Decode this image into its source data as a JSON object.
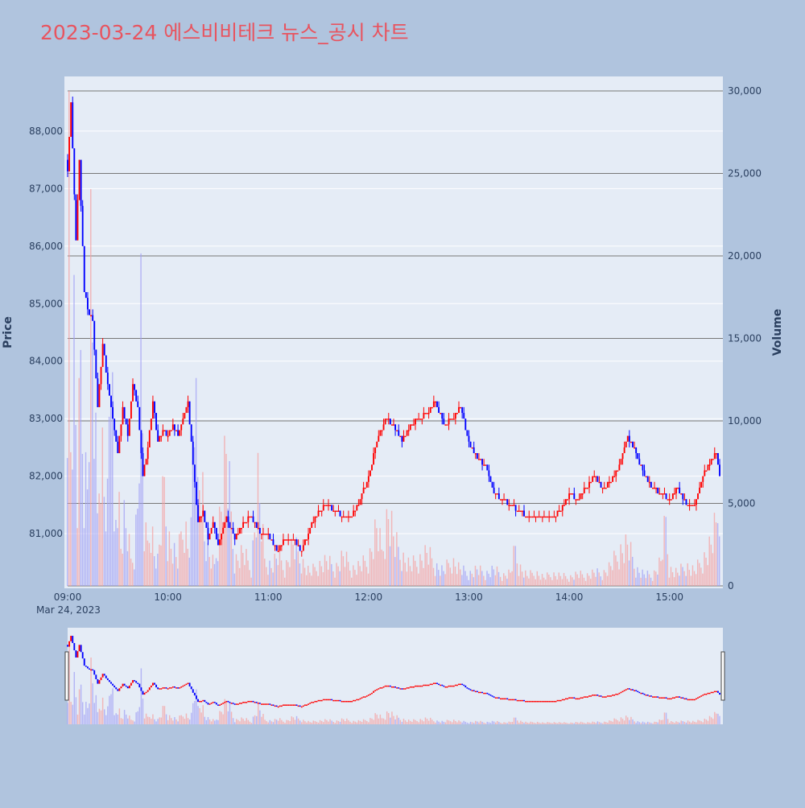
{
  "chart_data": {
    "type": "candlestick",
    "title": "2023-03-24 에스비비테크 뉴스_공시 차트",
    "ylabel_left": "Price",
    "ylabel_right": "Volume",
    "x_range": [
      "09:00",
      "15:30"
    ],
    "x_ticks": [
      "09:00",
      "10:00",
      "11:00",
      "12:00",
      "13:00",
      "14:00",
      "15:00"
    ],
    "x_date_label": "Mar 24, 2023",
    "price_ylim": [
      80050,
      88950
    ],
    "price_ticks": [
      "81,000",
      "82,000",
      "83,000",
      "84,000",
      "85,000",
      "86,000",
      "87,000",
      "88,000"
    ],
    "volume_ylim": [
      0,
      30000
    ],
    "volume_ticks": [
      "0",
      "5,000",
      "10,000",
      "15,000",
      "20,000",
      "25,000",
      "30,000"
    ],
    "colors": {
      "up": "#ff0000",
      "down": "#0000ff",
      "title": "#e8545f"
    },
    "price_series": [
      [
        0,
        87300
      ],
      [
        2,
        88500
      ],
      [
        5,
        86100
      ],
      [
        7,
        87500
      ],
      [
        10,
        85200
      ],
      [
        12,
        84900
      ],
      [
        15,
        84700
      ],
      [
        18,
        83200
      ],
      [
        21,
        84300
      ],
      [
        24,
        83600
      ],
      [
        27,
        83000
      ],
      [
        30,
        82400
      ],
      [
        33,
        83200
      ],
      [
        36,
        82700
      ],
      [
        39,
        83600
      ],
      [
        42,
        83200
      ],
      [
        45,
        82000
      ],
      [
        48,
        82500
      ],
      [
        51,
        83300
      ],
      [
        54,
        82600
      ],
      [
        57,
        82800
      ],
      [
        60,
        82700
      ],
      [
        63,
        82900
      ],
      [
        66,
        82700
      ],
      [
        69,
        83000
      ],
      [
        72,
        83300
      ],
      [
        75,
        82200
      ],
      [
        78,
        81200
      ],
      [
        81,
        81400
      ],
      [
        84,
        80900
      ],
      [
        87,
        81200
      ],
      [
        90,
        80800
      ],
      [
        95,
        81300
      ],
      [
        100,
        80900
      ],
      [
        105,
        81200
      ],
      [
        110,
        81300
      ],
      [
        115,
        81000
      ],
      [
        120,
        81000
      ],
      [
        125,
        80700
      ],
      [
        130,
        80900
      ],
      [
        135,
        80900
      ],
      [
        140,
        80700
      ],
      [
        145,
        81100
      ],
      [
        150,
        81400
      ],
      [
        155,
        81500
      ],
      [
        160,
        81400
      ],
      [
        165,
        81300
      ],
      [
        170,
        81300
      ],
      [
        175,
        81600
      ],
      [
        180,
        82000
      ],
      [
        185,
        82600
      ],
      [
        190,
        83000
      ],
      [
        195,
        82900
      ],
      [
        200,
        82600
      ],
      [
        205,
        82900
      ],
      [
        210,
        83000
      ],
      [
        215,
        83100
      ],
      [
        220,
        83300
      ],
      [
        225,
        82900
      ],
      [
        230,
        83000
      ],
      [
        235,
        83200
      ],
      [
        240,
        82600
      ],
      [
        245,
        82300
      ],
      [
        250,
        82200
      ],
      [
        255,
        81700
      ],
      [
        260,
        81600
      ],
      [
        265,
        81500
      ],
      [
        270,
        81400
      ],
      [
        275,
        81300
      ],
      [
        280,
        81300
      ],
      [
        285,
        81300
      ],
      [
        290,
        81300
      ],
      [
        295,
        81400
      ],
      [
        300,
        81700
      ],
      [
        305,
        81600
      ],
      [
        310,
        81800
      ],
      [
        315,
        82000
      ],
      [
        320,
        81800
      ],
      [
        325,
        81900
      ],
      [
        330,
        82200
      ],
      [
        335,
        82700
      ],
      [
        340,
        82400
      ],
      [
        345,
        82000
      ],
      [
        350,
        81800
      ],
      [
        355,
        81700
      ],
      [
        360,
        81600
      ],
      [
        365,
        81800
      ],
      [
        370,
        81500
      ],
      [
        375,
        81500
      ],
      [
        380,
        82000
      ],
      [
        385,
        82300
      ],
      [
        388,
        82400
      ],
      [
        390,
        82000
      ]
    ],
    "volume_series": [
      [
        0,
        15500
      ],
      [
        1,
        25000
      ],
      [
        2,
        9000
      ],
      [
        4,
        14500
      ],
      [
        6,
        5000
      ],
      [
        8,
        13000
      ],
      [
        10,
        7000
      ],
      [
        12,
        6500
      ],
      [
        14,
        18500
      ],
      [
        16,
        11000
      ],
      [
        18,
        4000
      ],
      [
        20,
        10000
      ],
      [
        22,
        6000
      ],
      [
        24,
        5000
      ],
      [
        26,
        15500
      ],
      [
        28,
        3000
      ],
      [
        30,
        7000
      ],
      [
        32,
        2500
      ],
      [
        34,
        4000
      ],
      [
        36,
        3000
      ],
      [
        38,
        1500
      ],
      [
        40,
        2000
      ],
      [
        42,
        5200
      ],
      [
        44,
        15500
      ],
      [
        46,
        3000
      ],
      [
        48,
        2500
      ],
      [
        50,
        4000
      ],
      [
        52,
        2000
      ],
      [
        54,
        1500
      ],
      [
        56,
        3500
      ],
      [
        58,
        6000
      ],
      [
        60,
        3000
      ],
      [
        62,
        2500
      ],
      [
        64,
        2000
      ],
      [
        66,
        1500
      ],
      [
        68,
        3000
      ],
      [
        70,
        4000
      ],
      [
        72,
        2500
      ],
      [
        74,
        3200
      ],
      [
        76,
        12000
      ],
      [
        78,
        6000
      ],
      [
        80,
        8500
      ],
      [
        82,
        3000
      ],
      [
        84,
        2000
      ],
      [
        86,
        1500
      ],
      [
        88,
        1200
      ],
      [
        90,
        3000
      ],
      [
        95,
        8000
      ],
      [
        100,
        1500
      ],
      [
        105,
        2000
      ],
      [
        110,
        1000
      ],
      [
        114,
        6200
      ],
      [
        118,
        1500
      ],
      [
        122,
        1200
      ],
      [
        126,
        1800
      ],
      [
        130,
        1000
      ],
      [
        135,
        2500
      ],
      [
        140,
        1500
      ],
      [
        145,
        800
      ],
      [
        150,
        1200
      ],
      [
        155,
        1500
      ],
      [
        160,
        1000
      ],
      [
        165,
        1800
      ],
      [
        170,
        1000
      ],
      [
        175,
        1200
      ],
      [
        180,
        1500
      ],
      [
        185,
        3500
      ],
      [
        188,
        2000
      ],
      [
        192,
        4500
      ],
      [
        196,
        2500
      ],
      [
        200,
        1800
      ],
      [
        205,
        1200
      ],
      [
        210,
        1500
      ],
      [
        215,
        2000
      ],
      [
        220,
        1200
      ],
      [
        225,
        900
      ],
      [
        230,
        1500
      ],
      [
        235,
        1000
      ],
      [
        240,
        700
      ],
      [
        245,
        1000
      ],
      [
        250,
        700
      ],
      [
        255,
        1000
      ],
      [
        260,
        600
      ],
      [
        265,
        800
      ],
      [
        268,
        2200
      ],
      [
        270,
        1200
      ],
      [
        275,
        600
      ],
      [
        280,
        800
      ],
      [
        285,
        500
      ],
      [
        290,
        700
      ],
      [
        295,
        600
      ],
      [
        300,
        500
      ],
      [
        305,
        700
      ],
      [
        310,
        600
      ],
      [
        315,
        800
      ],
      [
        320,
        700
      ],
      [
        325,
        1200
      ],
      [
        330,
        2000
      ],
      [
        335,
        2500
      ],
      [
        340,
        1000
      ],
      [
        345,
        700
      ],
      [
        350,
        600
      ],
      [
        355,
        1500
      ],
      [
        358,
        3800
      ],
      [
        360,
        1000
      ],
      [
        365,
        800
      ],
      [
        370,
        1200
      ],
      [
        375,
        900
      ],
      [
        380,
        1500
      ],
      [
        385,
        2500
      ],
      [
        388,
        3500
      ],
      [
        390,
        6000
      ]
    ]
  }
}
